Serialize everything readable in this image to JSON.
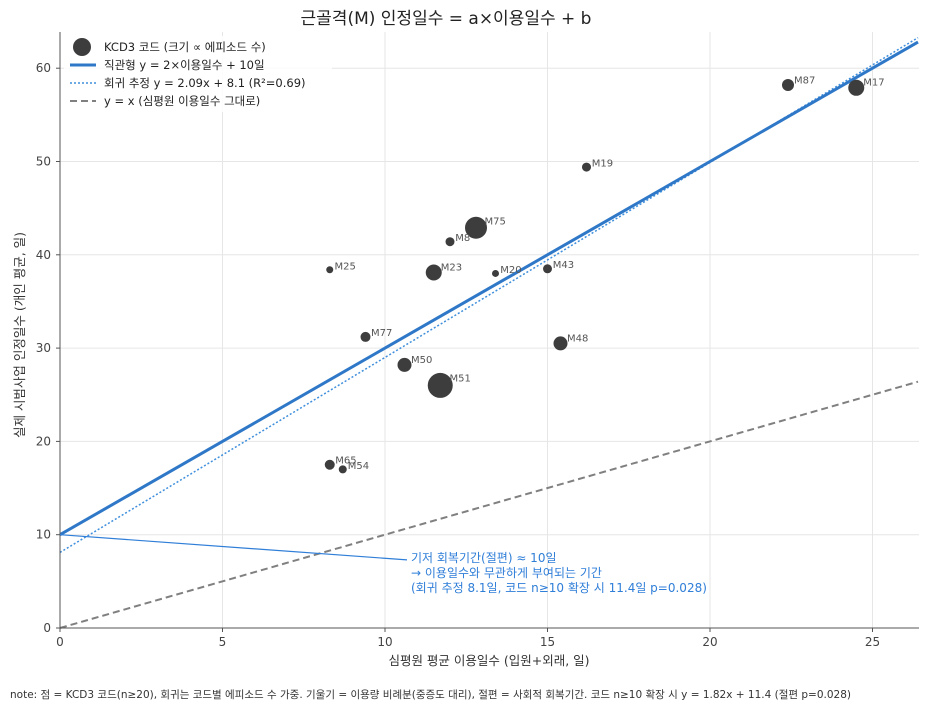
{
  "chart_data": {
    "type": "scatter",
    "title": "근골격(M) 인정일수 = a×이용일수 + b",
    "xlabel": "심평원 평균 이용일수 (입원+외래, 일)",
    "ylabel": "실제 시범사업 인정일수 (개인 평균, 일)",
    "xlim": [
      0,
      26.5
    ],
    "ylim": [
      0,
      64
    ],
    "xticks": [
      0,
      5,
      10,
      15,
      20,
      25
    ],
    "yticks": [
      0,
      10,
      20,
      30,
      40,
      50,
      60
    ],
    "grid": true,
    "legend_position": "top-left",
    "legend": [
      "KCD3 코드 (크기 ∝ 에피소드 수)",
      "직관형  y = 2×이용일수 + 10일",
      "회귀 추정  y = 2.09x + 8.1  (R²=0.69)",
      "y = x (심평원 이용일수 그대로)"
    ],
    "series": [
      {
        "name": "KCD3 코드 (크기 ∝ 에피소드 수)",
        "points": [
          {
            "label": "M87",
            "x": 22.4,
            "y": 58.2,
            "size": 6
          },
          {
            "label": "M17",
            "x": 24.5,
            "y": 57.9,
            "size": 8
          },
          {
            "label": "M19",
            "x": 16.2,
            "y": 49.4,
            "size": 4.5
          },
          {
            "label": "M75",
            "x": 12.8,
            "y": 42.9,
            "size": 11
          },
          {
            "label": "M8",
            "x": 12.0,
            "y": 41.4,
            "size": 4.5
          },
          {
            "label": "M25",
            "x": 8.3,
            "y": 38.4,
            "size": 3.5
          },
          {
            "label": "M23",
            "x": 11.5,
            "y": 38.1,
            "size": 8
          },
          {
            "label": "M20",
            "x": 13.4,
            "y": 38.0,
            "size": 3.5
          },
          {
            "label": "M43",
            "x": 15.0,
            "y": 38.5,
            "size": 4.5
          },
          {
            "label": "M77",
            "x": 9.4,
            "y": 31.2,
            "size": 5
          },
          {
            "label": "M48",
            "x": 15.4,
            "y": 30.5,
            "size": 7
          },
          {
            "label": "M50",
            "x": 10.6,
            "y": 28.2,
            "size": 7
          },
          {
            "label": "M51",
            "x": 11.7,
            "y": 26.0,
            "size": 12.5
          },
          {
            "label": "M65",
            "x": 8.3,
            "y": 17.5,
            "size": 5
          },
          {
            "label": "M54",
            "x": 8.7,
            "y": 17.0,
            "size": 4
          }
        ]
      },
      {
        "name": "직관형  y = 2×이용일수 + 10일",
        "slope": 2,
        "intercept": 10,
        "color": "#2f78c8"
      },
      {
        "name": "회귀 추정  y = 2.09x + 8.1  (R²=0.69)",
        "slope": 2.09,
        "intercept": 8.1,
        "color": "#3f8fdc"
      },
      {
        "name": "y = x (심평원 이용일수 그대로)",
        "slope": 1,
        "intercept": 0,
        "color": "#808080"
      }
    ],
    "annotation": {
      "lines": [
        "기저 회복기간(절편) ≈ 10일",
        "→ 이용일수와 무관하게 부여되는 기간",
        "(회귀 추정 8.1일, 코드 n≥10 확장 시 11.4일 p=0.028)"
      ],
      "points_to": {
        "x": 0,
        "y": 10
      },
      "text_anchor": {
        "x": 10.8,
        "y": 7.3
      }
    },
    "note": "note: 점 = KCD3 코드(n≥20), 회귀는 코드별 에피소드 수 가중. 기울기 = 이용량 비례분(중증도 대리), 절편 = 사회적 회복기간. 코드 n≥10 확장 시 y = 1.82x + 11.4 (절편 p=0.028)",
    "colors": {
      "points": "#3d3d3d",
      "line_main": "#2f78c8",
      "line_reg": "#3f8fdc",
      "line_identity": "#808080",
      "annotation": "#2f7ed8"
    }
  }
}
